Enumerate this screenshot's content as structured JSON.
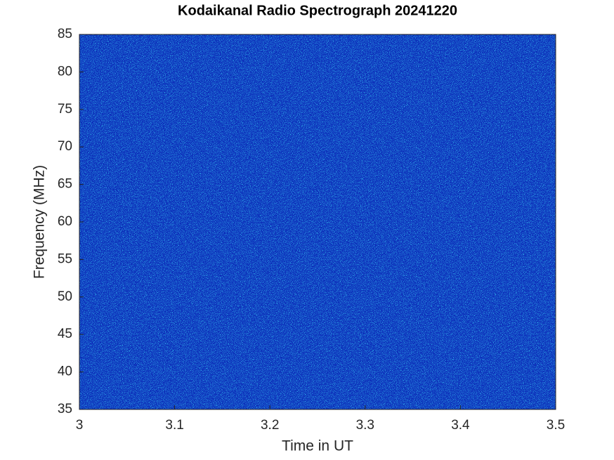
{
  "chart_data": {
    "type": "spectrogram",
    "title": "Kodaikanal Radio Spectrograph  20241220",
    "x_label": "Time in UT",
    "y_label": "Frequency (MHz)",
    "xlim": [
      3,
      3.5
    ],
    "xticks": [
      3,
      3.1,
      3.2,
      3.3,
      3.4,
      3.5
    ],
    "ylim": [
      35,
      85
    ],
    "yticks": [
      35,
      40,
      45,
      50,
      55,
      60,
      65,
      70,
      75,
      80,
      85
    ],
    "background_color": "#0b2cb8"
  }
}
